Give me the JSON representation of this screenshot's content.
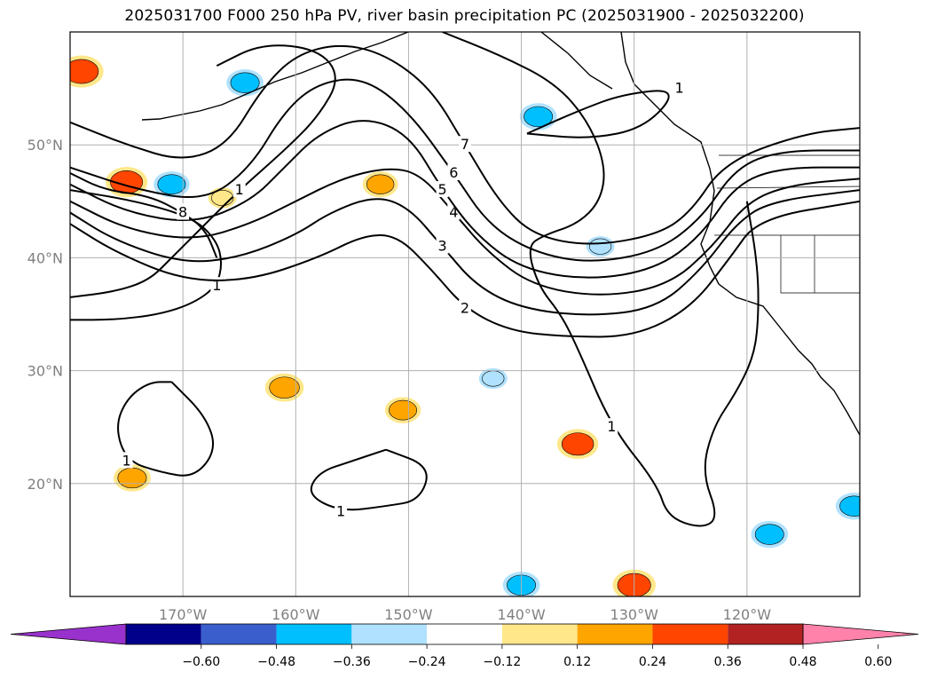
{
  "chart_data": {
    "type": "contour_map",
    "title": "2025031700 F000 250 hPa PV, river basin precipitation PC (2025031900 - 2025032200)",
    "projection": "lon-lat",
    "xlim": [
      -180,
      -110
    ],
    "ylim": [
      10,
      60
    ],
    "grid": true,
    "lon_ticks": [
      {
        "value": -170,
        "label": "170°W"
      },
      {
        "value": -160,
        "label": "160°W"
      },
      {
        "value": -150,
        "label": "150°W"
      },
      {
        "value": -140,
        "label": "140°W"
      },
      {
        "value": -130,
        "label": "130°W"
      },
      {
        "value": -120,
        "label": "120°W"
      }
    ],
    "lat_ticks": [
      {
        "value": 20,
        "label": "20°N"
      },
      {
        "value": 30,
        "label": "30°N"
      },
      {
        "value": 40,
        "label": "40°N"
      },
      {
        "value": 50,
        "label": "50°N"
      }
    ],
    "pv_contours": [
      {
        "value": 1,
        "label": "1",
        "color": "#000000",
        "points": [
          [
            -180,
            46
          ],
          [
            -174,
            45
          ],
          [
            -169,
            43.5
          ],
          [
            -167,
            41.5
          ],
          [
            -166.5,
            39.5
          ],
          [
            -167,
            37.5
          ],
          [
            -169,
            36
          ],
          [
            -172,
            35
          ],
          [
            -176,
            34.5
          ],
          [
            -180,
            34.5
          ]
        ]
      },
      {
        "value": 1,
        "label": "1",
        "color": "#000000",
        "points": [
          [
            -167,
            57
          ],
          [
            -163,
            59
          ],
          [
            -158,
            58.5
          ],
          [
            -156,
            56
          ],
          [
            -158,
            52.5
          ],
          [
            -161,
            49.5
          ],
          [
            -165,
            46
          ],
          [
            -169,
            42
          ],
          [
            -171,
            40
          ],
          [
            -173,
            38
          ],
          [
            -176,
            37
          ],
          [
            -180,
            36.5
          ]
        ]
      },
      {
        "value": 1,
        "label": "1",
        "color": "#000000",
        "points": [
          [
            -147,
            60
          ],
          [
            -142,
            58
          ],
          [
            -137,
            55.5
          ],
          [
            -134,
            52
          ],
          [
            -132.5,
            48
          ],
          [
            -133,
            45
          ],
          [
            -135,
            43
          ],
          [
            -138,
            42
          ],
          [
            -139.5,
            41
          ],
          [
            -138.5,
            37.5
          ],
          [
            -136.5,
            35
          ],
          [
            -135,
            32
          ],
          [
            -132,
            25
          ],
          [
            -128,
            20
          ],
          [
            -127,
            17
          ],
          [
            -124,
            16
          ],
          [
            -122.5,
            17
          ],
          [
            -124,
            21
          ],
          [
            -123,
            25
          ],
          [
            -121,
            28
          ],
          [
            -119.5,
            31
          ],
          [
            -119,
            34
          ],
          [
            -119,
            39
          ],
          [
            -120,
            45
          ]
        ]
      },
      {
        "value": 1,
        "label": "1",
        "color": "#000000",
        "points": [
          [
            -171,
            29
          ],
          [
            -168,
            26
          ],
          [
            -167,
            23
          ],
          [
            -169,
            20.5
          ],
          [
            -172,
            21
          ],
          [
            -175,
            22
          ],
          [
            -176,
            25
          ],
          [
            -175,
            27.5
          ],
          [
            -173,
            29
          ],
          [
            -171,
            29
          ]
        ]
      },
      {
        "value": 1,
        "label": "1",
        "color": "#000000",
        "points": [
          [
            -152,
            23
          ],
          [
            -148,
            21.5
          ],
          [
            -149,
            18.5
          ],
          [
            -152,
            18
          ],
          [
            -156,
            17.5
          ],
          [
            -159,
            19
          ],
          [
            -158,
            21
          ],
          [
            -155,
            22
          ],
          [
            -152,
            23
          ]
        ]
      },
      {
        "value": 2,
        "label": "2",
        "color": "#000000",
        "points": [
          [
            -180,
            43
          ],
          [
            -176,
            40.5
          ],
          [
            -170,
            38
          ],
          [
            -164,
            38
          ],
          [
            -158,
            40
          ],
          [
            -154,
            42
          ],
          [
            -151,
            42
          ],
          [
            -148,
            39
          ],
          [
            -145,
            35.5
          ],
          [
            -141,
            33.5
          ],
          [
            -136,
            33
          ],
          [
            -130,
            33
          ],
          [
            -125,
            35.5
          ],
          [
            -121.5,
            40
          ],
          [
            -119,
            43.5
          ],
          [
            -110,
            45
          ]
        ]
      },
      {
        "value": 3,
        "label": "3",
        "color": "#000000",
        "points": [
          [
            -180,
            44
          ],
          [
            -176,
            41.5
          ],
          [
            -170,
            39.5
          ],
          [
            -165,
            40
          ],
          [
            -160,
            42
          ],
          [
            -157,
            44
          ],
          [
            -153,
            45.5
          ],
          [
            -150,
            44.5
          ],
          [
            -147,
            41
          ],
          [
            -144,
            37.5
          ],
          [
            -140,
            35.5
          ],
          [
            -134,
            34.8
          ],
          [
            -128,
            35.5
          ],
          [
            -124,
            39
          ],
          [
            -121,
            43
          ],
          [
            -118,
            45
          ],
          [
            -110,
            46
          ]
        ]
      },
      {
        "value": 4,
        "label": "4",
        "color": "#000000",
        "points": [
          [
            -180,
            45
          ],
          [
            -175,
            42.5
          ],
          [
            -169,
            41.5
          ],
          [
            -164,
            43
          ],
          [
            -160,
            45
          ],
          [
            -156,
            47
          ],
          [
            -152,
            48
          ],
          [
            -149,
            47.5
          ],
          [
            -146,
            44
          ],
          [
            -143,
            40.5
          ],
          [
            -139,
            37.5
          ],
          [
            -133,
            36.5
          ],
          [
            -127,
            37.5
          ],
          [
            -123,
            41
          ],
          [
            -120,
            45
          ],
          [
            -116,
            46.5
          ],
          [
            -110,
            47
          ]
        ]
      },
      {
        "value": 5,
        "label": "5",
        "color": "#000000",
        "points": [
          [
            -180,
            46.5
          ],
          [
            -175,
            44
          ],
          [
            -169,
            43
          ],
          [
            -164,
            45
          ],
          [
            -161,
            48
          ],
          [
            -158,
            51
          ],
          [
            -154,
            52.5
          ],
          [
            -150,
            51
          ],
          [
            -147,
            46
          ],
          [
            -144,
            42
          ],
          [
            -140,
            39
          ],
          [
            -134,
            38
          ],
          [
            -128,
            39
          ],
          [
            -124,
            42
          ],
          [
            -121,
            46.5
          ],
          [
            -117,
            48
          ],
          [
            -110,
            48
          ]
        ]
      },
      {
        "value": 6,
        "label": "6",
        "color": "#000000",
        "points": [
          [
            -180,
            48
          ],
          [
            -174,
            46
          ],
          [
            -168,
            45
          ],
          [
            -164,
            48
          ],
          [
            -161,
            53
          ],
          [
            -158,
            55.5
          ],
          [
            -154,
            56
          ],
          [
            -150,
            53
          ],
          [
            -146,
            47.5
          ],
          [
            -143,
            43
          ],
          [
            -139,
            40.5
          ],
          [
            -134,
            39.5
          ],
          [
            -128,
            40.5
          ],
          [
            -124,
            43.5
          ],
          [
            -121,
            48
          ],
          [
            -117,
            49.5
          ],
          [
            -110,
            49.5
          ]
        ]
      },
      {
        "value": 7,
        "label": "7",
        "color": "#000000",
        "points": [
          [
            -180,
            52
          ],
          [
            -175,
            50
          ],
          [
            -170,
            48.5
          ],
          [
            -166,
            50
          ],
          [
            -163,
            55
          ],
          [
            -160,
            58
          ],
          [
            -156,
            59
          ],
          [
            -152,
            58
          ],
          [
            -148,
            55
          ],
          [
            -145,
            50
          ],
          [
            -142,
            45
          ],
          [
            -139,
            42
          ],
          [
            -134,
            41
          ],
          [
            -128,
            42
          ],
          [
            -125,
            44
          ],
          [
            -122,
            48.5
          ],
          [
            -115,
            51
          ],
          [
            -110,
            51.5
          ]
        ]
      },
      {
        "value": 8,
        "label": "8",
        "color": "#000000",
        "points": [
          [
            -180,
            47.5
          ],
          [
            -177,
            46
          ],
          [
            -173,
            45.5
          ],
          [
            -170,
            44
          ],
          [
            -168,
            42.5
          ],
          [
            -167,
            40
          ]
        ]
      },
      {
        "value": 1,
        "label": "1",
        "color": "#000000",
        "points": [
          [
            -139.5,
            51
          ],
          [
            -135,
            53
          ],
          [
            -131,
            54.5
          ],
          [
            -126,
            55
          ],
          [
            -129,
            51.5
          ],
          [
            -134,
            50.5
          ],
          [
            -139.5,
            51
          ]
        ]
      }
    ],
    "precip_pc_shading": {
      "levels": [
        -0.6,
        -0.48,
        -0.36,
        -0.24,
        -0.12,
        0.12,
        0.24,
        0.36,
        0.48,
        0.6
      ],
      "colors": [
        "#9932CC",
        "#00008B",
        "#3A5FCD",
        "#00BFFF",
        "#B0E2FF",
        "#FFFFFF",
        "#FFE78A",
        "#FFA500",
        "#FF4500",
        "#B22222",
        "#FF82AB"
      ],
      "cells": [
        {
          "lon": -179,
          "lat": 56.5,
          "value": 0.42
        },
        {
          "lon": -175,
          "lat": 46.7,
          "value": 0.38
        },
        {
          "lon": -174.5,
          "lat": 20.5,
          "value": 0.3
        },
        {
          "lon": -161,
          "lat": 28.5,
          "value": 0.33
        },
        {
          "lon": -150.5,
          "lat": 26.5,
          "value": 0.28
        },
        {
          "lon": -135,
          "lat": 23.5,
          "value": 0.37
        },
        {
          "lon": -130,
          "lat": 11,
          "value": 0.4
        },
        {
          "lon": -152.5,
          "lat": 46.5,
          "value": 0.27
        },
        {
          "lon": -166.5,
          "lat": 45.3,
          "value": 0.15
        },
        {
          "lon": -164.5,
          "lat": 55.5,
          "value": -0.3
        },
        {
          "lon": -138.5,
          "lat": 52.5,
          "value": -0.3
        },
        {
          "lon": -171,
          "lat": 46.5,
          "value": -0.28
        },
        {
          "lon": -118,
          "lat": 15.5,
          "value": -0.3
        },
        {
          "lon": -140,
          "lat": 11,
          "value": -0.3
        },
        {
          "lon": -110.5,
          "lat": 18,
          "value": -0.3
        },
        {
          "lon": -133,
          "lat": 41,
          "value": -0.15
        },
        {
          "lon": -142.5,
          "lat": 29.3,
          "value": -0.15
        }
      ]
    },
    "colorbar": {
      "orientation": "horizontal",
      "extend": "both",
      "tick_labels": [
        "−0.60",
        "−0.48",
        "−0.36",
        "−0.24",
        "−0.12",
        "0.12",
        "0.24",
        "0.36",
        "0.48",
        "0.60"
      ]
    }
  }
}
